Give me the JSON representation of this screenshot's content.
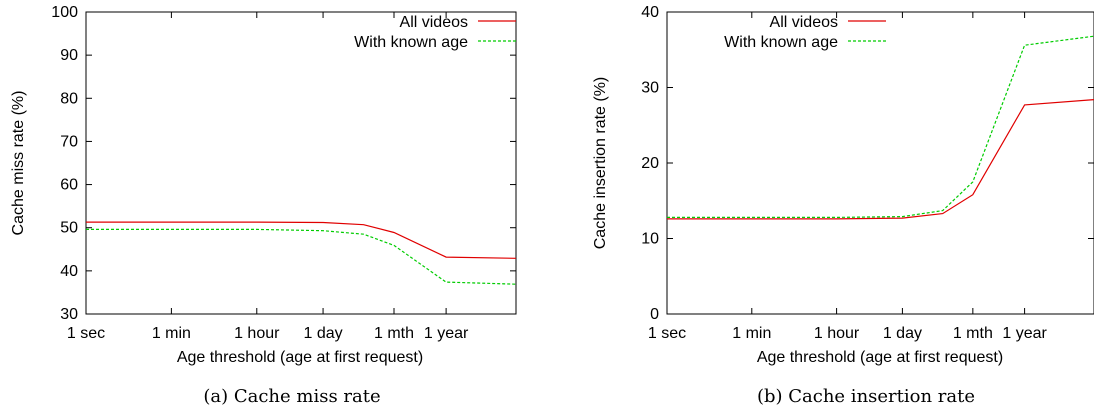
{
  "chart_data": [
    {
      "id": "a",
      "type": "line",
      "caption": "(a) Cache miss rate",
      "title": "",
      "xlabel": "Age threshold (age at first request)",
      "ylabel": "Cache miss rate (%)",
      "ylim": [
        30,
        100
      ],
      "yticks": [
        30,
        40,
        50,
        60,
        70,
        80,
        90,
        100
      ],
      "xscale": "log",
      "x_unit": "seconds",
      "xticks": [
        {
          "label": "1 sec",
          "value": 1
        },
        {
          "label": "1 min",
          "value": 60
        },
        {
          "label": "1 hour",
          "value": 3600
        },
        {
          "label": "1 day",
          "value": 86400
        },
        {
          "label": "1 mth",
          "value": 2592000
        },
        {
          "label": "1 year",
          "value": 31536000
        }
      ],
      "xlim": [
        1,
        900000000
      ],
      "legend": "top-right",
      "grid": false,
      "series": [
        {
          "name": "All videos",
          "color": "#e00000",
          "style": "solid",
          "x": [
            1,
            60,
            3600,
            86400,
            604800,
            2592000,
            31536000,
            900000000
          ],
          "y": [
            51.3,
            51.3,
            51.3,
            51.2,
            50.7,
            48.9,
            43.2,
            42.9
          ]
        },
        {
          "name": "With known age",
          "color": "#00cc00",
          "style": "dashed",
          "x": [
            1,
            60,
            3600,
            86400,
            604800,
            2592000,
            31536000,
            900000000
          ],
          "y": [
            49.6,
            49.6,
            49.6,
            49.3,
            48.5,
            45.9,
            37.4,
            36.9
          ]
        }
      ]
    },
    {
      "id": "b",
      "type": "line",
      "caption": "(b) Cache insertion rate",
      "title": "",
      "xlabel": "Age threshold (age at first request)",
      "ylabel": "Cache insertion rate (%)",
      "ylim": [
        0,
        40
      ],
      "yticks": [
        0,
        10,
        20,
        30,
        40
      ],
      "xscale": "log",
      "x_unit": "seconds",
      "xticks": [
        {
          "label": "1 sec",
          "value": 1
        },
        {
          "label": "1 min",
          "value": 60
        },
        {
          "label": "1 hour",
          "value": 3600
        },
        {
          "label": "1 day",
          "value": 86400
        },
        {
          "label": "1 mth",
          "value": 2592000
        },
        {
          "label": "1 year",
          "value": 31536000
        }
      ],
      "xlim": [
        1,
        900000000
      ],
      "legend": "top-left",
      "grid": false,
      "series": [
        {
          "name": "All videos",
          "color": "#e00000",
          "style": "solid",
          "x": [
            1,
            60,
            3600,
            86400,
            604800,
            2592000,
            31536000,
            900000000
          ],
          "y": [
            12.6,
            12.6,
            12.6,
            12.7,
            13.3,
            15.8,
            27.7,
            28.4
          ]
        },
        {
          "name": "With known age",
          "color": "#00cc00",
          "style": "dashed",
          "x": [
            1,
            60,
            3600,
            86400,
            604800,
            2592000,
            31536000,
            900000000
          ],
          "y": [
            12.8,
            12.8,
            12.8,
            12.9,
            13.7,
            17.5,
            35.6,
            36.8
          ]
        }
      ]
    }
  ]
}
